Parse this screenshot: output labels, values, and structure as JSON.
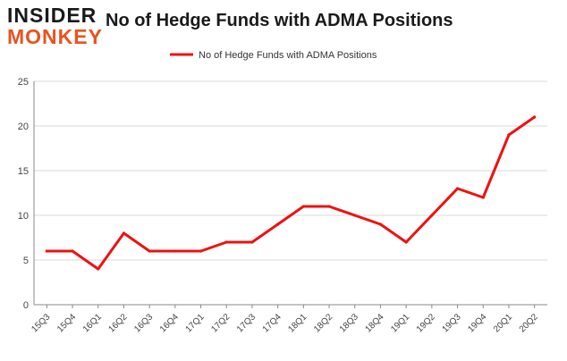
{
  "logo": {
    "line1": "INSIDER",
    "line2": "MONKEY"
  },
  "colors": {
    "series": "#ee1111",
    "grid": "#d9d9d9",
    "axis": "#888888",
    "brand": "#e8531f"
  },
  "chart_data": {
    "type": "line",
    "title": "No of Hedge Funds with ADMA Positions",
    "xlabel": "",
    "ylabel": "",
    "categories": [
      "15Q3",
      "15Q4",
      "16Q1",
      "16Q2",
      "16Q3",
      "16Q4",
      "17Q1",
      "17Q2",
      "17Q3",
      "17Q4",
      "18Q1",
      "18Q2",
      "18Q3",
      "18Q4",
      "19Q1",
      "19Q2",
      "19Q3",
      "19Q4",
      "20Q1",
      "20Q2"
    ],
    "series": [
      {
        "name": "No of Hedge Funds with ADMA Positions",
        "values": [
          6,
          6,
          4,
          8,
          6,
          6,
          6,
          7,
          7,
          9,
          11,
          11,
          10,
          9,
          7,
          10,
          13,
          12,
          19,
          21
        ]
      }
    ],
    "ylim": [
      0,
      25
    ],
    "yticks": [
      0,
      5,
      10,
      15,
      20,
      25
    ],
    "grid": true,
    "legend": "top-center"
  }
}
